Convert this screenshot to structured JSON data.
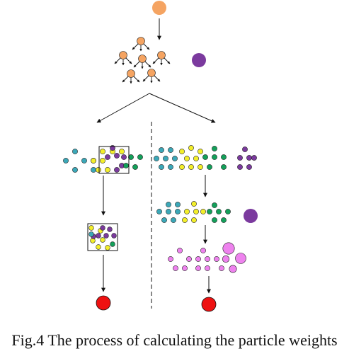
{
  "caption": "Fig.4 The process of calculating the particle weights",
  "colors": {
    "initial_particle": "#f5a462",
    "observation": "#7b3a9e",
    "cyan": "#3ba8b8",
    "yellow": "#f3ee2a",
    "purple": "#7b3a9e",
    "green": "#13a05a",
    "pink": "#ee82ee",
    "result": "#ee1111",
    "line": "#111111"
  }
}
